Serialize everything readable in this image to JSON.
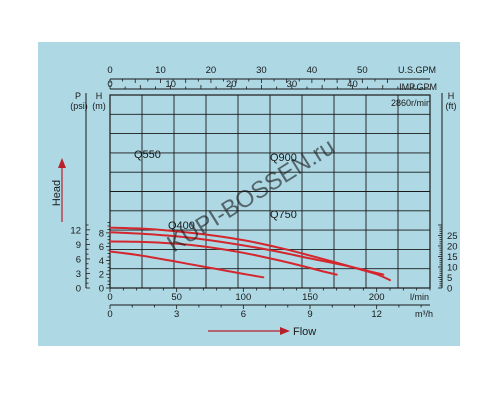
{
  "colors": {
    "panel_bg": "#add8e4",
    "grid": "#1a1a1a",
    "curve": "#d4262c",
    "arrow": "#b8202a",
    "watermark": "#ffffff"
  },
  "watermark_text": "KUPI-BOSSEN.ru",
  "speed_note": "2860r/min",
  "chart_data": {
    "type": "line",
    "xlabel": "Flow",
    "ylabel": "Head",
    "xlim": [
      0,
      240
    ],
    "ylim": [
      0,
      28
    ],
    "x_unit": "l/min",
    "y_unit": "(m)",
    "grid": true,
    "axes": {
      "usgpm": {
        "label": "U.S.GPM",
        "ticks": [
          "0",
          "10",
          "20",
          "30",
          "40",
          "50"
        ],
        "values": [
          0,
          10,
          20,
          30,
          40,
          50
        ],
        "lpm_per_unit": 3.785
      },
      "impgpm": {
        "label": "IMP.GPM",
        "ticks": [
          "0",
          "10",
          "20",
          "30",
          "40"
        ],
        "values": [
          0,
          10,
          20,
          30,
          40
        ],
        "lpm_per_unit": 4.546
      },
      "lpm": {
        "label": "l/min",
        "ticks": [
          "0",
          "50",
          "100",
          "150",
          "200"
        ],
        "values": [
          0,
          50,
          100,
          150,
          200
        ]
      },
      "m3h": {
        "label": "m³/h",
        "ticks": [
          "0",
          "3",
          "6",
          "9",
          "12"
        ],
        "values": [
          0,
          3,
          6,
          9,
          12
        ],
        "lpm_per_unit": 16.667
      },
      "psi": {
        "label_top": "P",
        "label_bottom": "(psi)",
        "ticks": [
          "0",
          "3",
          "6",
          "9",
          "12"
        ],
        "values": [
          0,
          3,
          6,
          9,
          12
        ],
        "m_per_unit": 0.7031
      },
      "m": {
        "label_top": "H",
        "label_bottom": "(m)",
        "ticks": [
          "0",
          "2",
          "4",
          "6",
          "8"
        ],
        "values": [
          0,
          2,
          4,
          6,
          8
        ]
      },
      "ft": {
        "label_top": "H",
        "label_bottom": "(ft)",
        "ticks": [
          "0",
          "5",
          "10",
          "15",
          "20",
          "25"
        ],
        "values": [
          0,
          5,
          10,
          15,
          20,
          25
        ],
        "m_per_unit": 0.3048
      }
    },
    "series": [
      {
        "name": "Q900",
        "x": [
          0,
          20,
          40,
          70,
          100,
          130,
          160,
          185,
          200,
          210
        ],
        "y": [
          8.75,
          8.65,
          8.4,
          7.8,
          6.95,
          5.7,
          4.2,
          2.85,
          2.0,
          1.15
        ]
      },
      {
        "name": "Q750",
        "x": [
          0,
          30,
          60,
          90,
          120,
          150,
          180,
          195,
          205
        ],
        "y": [
          8.1,
          7.8,
          7.3,
          6.5,
          5.5,
          4.3,
          3.1,
          2.4,
          1.95
        ]
      },
      {
        "name": "Q550",
        "x": [
          0,
          20,
          40,
          60,
          80,
          100,
          120,
          140,
          160,
          170
        ],
        "y": [
          6.75,
          6.7,
          6.55,
          6.25,
          5.75,
          5.1,
          4.3,
          3.4,
          2.4,
          1.95
        ]
      },
      {
        "name": "Q400",
        "x": [
          0,
          20,
          40,
          60,
          80,
          100,
          115
        ],
        "y": [
          5.3,
          4.8,
          4.15,
          3.45,
          2.75,
          2.05,
          1.55
        ]
      }
    ]
  }
}
